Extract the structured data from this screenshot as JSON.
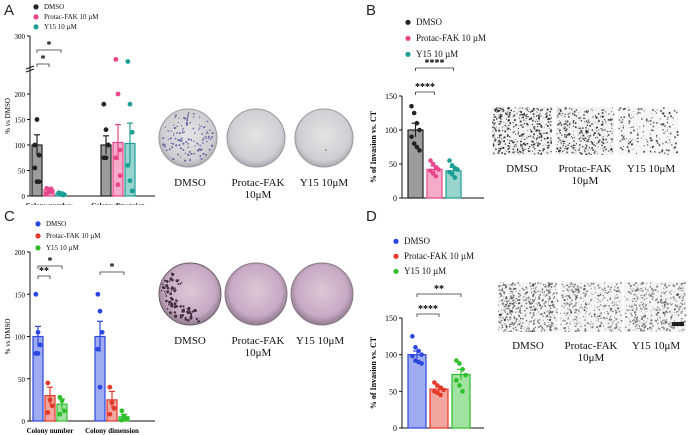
{
  "panels": {
    "a": {
      "letter": "A",
      "legend": [
        "DMSO",
        "Protac-FAK 10 µM",
        "Y15 10 µM"
      ],
      "colors": [
        "#222222",
        "#e8468a",
        "#1e9f95"
      ],
      "photo_labels": [
        "DMSO",
        "Protac-FAK\n10μM",
        "Y15 10μM"
      ]
    },
    "b": {
      "letter": "B",
      "legend": [
        "DMSO",
        "Protac-FAK 10 µM",
        "Y15 10 µM"
      ],
      "colors": [
        "#222222",
        "#e8468a",
        "#1e9f95"
      ],
      "photo_labels": [
        "DMSO",
        "Protac-FAK\n10μM",
        "Y15 10μM"
      ]
    },
    "c": {
      "letter": "C",
      "legend": [
        "DMSO",
        "Protac-FAK 10 µM",
        "Y15 10 µM"
      ],
      "colors": [
        "#2b47e0",
        "#e23a2a",
        "#2fbf2b"
      ],
      "photo_labels": [
        "DMSO",
        "Protac-FAK\n10μM",
        "Y15 10μM"
      ]
    },
    "d": {
      "letter": "D",
      "legend": [
        "DMSO",
        "Protac-FAK 10 µM",
        "Y15 10 µM"
      ],
      "colors": [
        "#2b47e0",
        "#e23a2a",
        "#2fbf2b"
      ],
      "photo_labels": [
        "DMSO",
        "Protac-FAK\n10μM",
        "Y15 10μM"
      ]
    }
  },
  "chart_data": [
    {
      "id": "A",
      "type": "bar",
      "ylabel": "% vs DMSO",
      "ylim": [
        0,
        300
      ],
      "yticks": [
        0,
        50,
        100,
        150,
        200,
        300
      ],
      "axis_break": [
        200,
        300
      ],
      "categories": [
        "Colony number",
        "Colony dimension"
      ],
      "series": [
        {
          "name": "DMSO",
          "values": [
            100,
            100
          ],
          "sem": [
            20,
            18
          ],
          "points": [
            [
              100,
              150,
              80,
              55,
              28,
              28
            ],
            [
              180,
              130,
              100,
              75,
              75,
              100
            ]
          ]
        },
        {
          "name": "Protac-FAK 10 µM",
          "values": [
            12,
            105
          ],
          "sem": [
            4,
            35
          ],
          "points": [
            [
              15,
              10,
              8,
              5,
              12,
              14
            ],
            [
              222,
              200,
              90,
              75,
              22,
              40
            ]
          ]
        },
        {
          "name": "Y15 10 µM",
          "values": [
            5,
            103
          ],
          "sem": [
            2,
            40
          ],
          "points": [
            [
              6,
              3,
              4,
              6,
              5,
              2
            ],
            [
              215,
              180,
              125,
              60,
              30,
              10
            ]
          ]
        }
      ],
      "significance": [
        {
          "label": "*",
          "from": 0,
          "to": 1,
          "group": 0
        },
        {
          "label": "*",
          "from": 0,
          "to": 2,
          "group": 0
        }
      ]
    },
    {
      "id": "B",
      "type": "bar",
      "ylabel": "% of Invasion vs. CT",
      "ylim": [
        0,
        150
      ],
      "yticks": [
        0,
        50,
        100,
        150
      ],
      "categories": [
        "DMSO",
        "Protac-FAK 10 µM",
        "Y15 10 µM"
      ],
      "values": [
        100,
        42,
        40
      ],
      "sem": [
        10,
        5,
        5
      ],
      "points": [
        [
          135,
          125,
          110,
          100,
          90,
          80,
          75,
          70
        ],
        [
          55,
          50,
          45,
          42,
          40,
          36,
          32
        ],
        [
          55,
          48,
          44,
          42,
          38,
          35,
          30
        ]
      ],
      "significance": [
        {
          "label": "****",
          "from": 0,
          "to": 1
        },
        {
          "label": "****",
          "from": 0,
          "to": 2
        }
      ]
    },
    {
      "id": "C",
      "type": "bar",
      "ylabel": "% vs DMSO",
      "ylim": [
        0,
        200
      ],
      "yticks": [
        0,
        50,
        100,
        150,
        200
      ],
      "categories": [
        "Colony number",
        "Colony dimension"
      ],
      "series": [
        {
          "name": "DMSO",
          "values": [
            100,
            100
          ],
          "sem": [
            12,
            18
          ],
          "points": [
            [
              150,
              105,
              90,
              80,
              80
            ],
            [
              150,
              130,
              105,
              85,
              40
            ]
          ]
        },
        {
          "name": "Protac-FAK 10 µM",
          "values": [
            30,
            25
          ],
          "sem": [
            10,
            10
          ],
          "points": [
            [
              45,
              25,
              18,
              10
            ],
            [
              40,
              22,
              15,
              8
            ]
          ]
        },
        {
          "name": "Y15 10 µM",
          "values": [
            20,
            5
          ],
          "sem": [
            6,
            3
          ],
          "points": [
            [
              28,
              24,
              12,
              8
            ],
            [
              12,
              6,
              3,
              1
            ]
          ]
        }
      ],
      "significance": [
        {
          "label": "**",
          "from": 0,
          "to": 1,
          "group": 0
        },
        {
          "label": "*",
          "from": 0,
          "to": 2,
          "group": 0
        },
        {
          "label": "*",
          "from": 0,
          "to": 2,
          "group": 1
        }
      ]
    },
    {
      "id": "D",
      "type": "bar",
      "ylabel": "% of Invasion vs. CT",
      "ylim": [
        0,
        150
      ],
      "yticks": [
        0,
        50,
        100,
        150
      ],
      "categories": [
        "DMSO",
        "Protac-FAK 10 µM",
        "Y15 10 µM"
      ],
      "values": [
        100,
        53,
        73
      ],
      "sem": [
        5,
        3,
        7
      ],
      "points": [
        [
          125,
          110,
          105,
          100,
          98,
          92,
          90,
          88
        ],
        [
          62,
          58,
          55,
          52,
          50,
          48,
          45
        ],
        [
          92,
          88,
          80,
          72,
          65,
          58,
          50
        ]
      ],
      "significance": [
        {
          "label": "****",
          "from": 0,
          "to": 1
        },
        {
          "label": "**",
          "from": 0,
          "to": 2
        }
      ]
    }
  ]
}
